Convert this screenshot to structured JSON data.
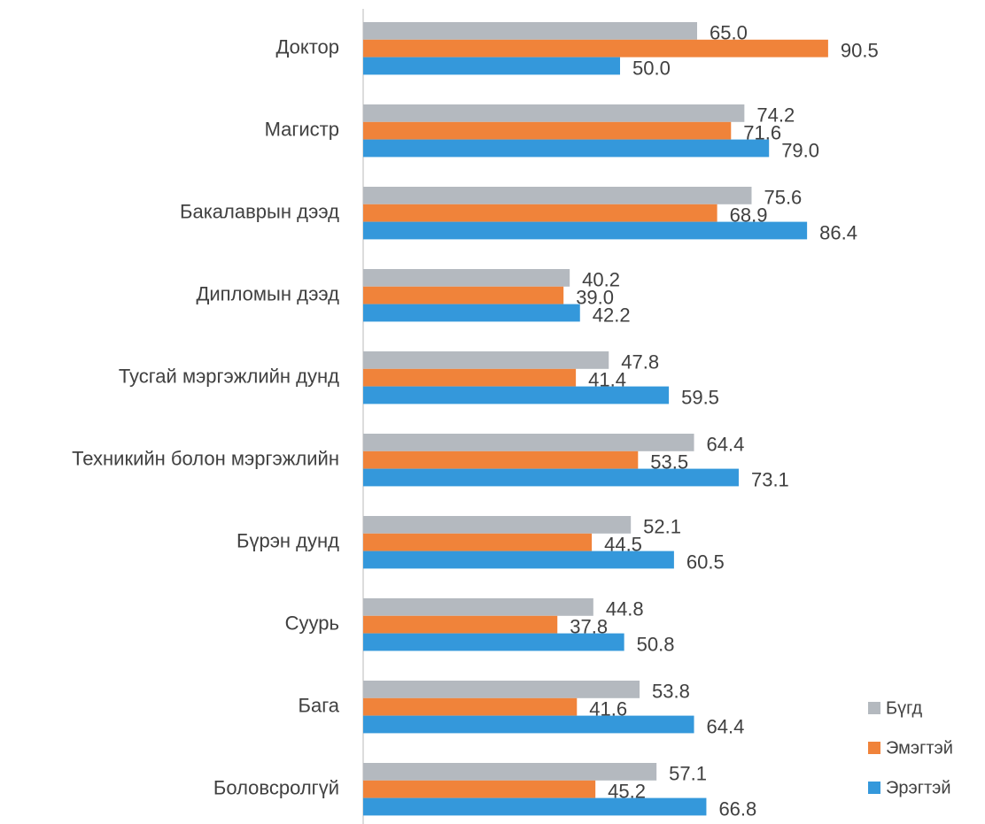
{
  "chart_data": {
    "type": "hbar",
    "categories": [
      "Доктор",
      "Магистр",
      "Бакалаврын дээд",
      "Дипломын дээд",
      "Тусгай мэргэжлийн дунд",
      "Техникийн болон мэргэжлийн",
      "Бүрэн дунд",
      "Суурь",
      "Бага",
      "Боловсролгүй"
    ],
    "series": [
      {
        "name": "Бүгд",
        "color": "#b4b9bf",
        "values": [
          65.0,
          74.2,
          75.6,
          40.2,
          47.8,
          64.4,
          52.1,
          44.8,
          53.8,
          57.1
        ],
        "value_labels": [
          "65.0",
          "74.2",
          "75.6",
          "40.2",
          "47.8",
          "64.4",
          "52.1",
          "44.8",
          "53.8",
          "57.1"
        ]
      },
      {
        "name": "Эмэгтэй",
        "color": "#f0833a",
        "values": [
          90.5,
          71.6,
          68.9,
          39.0,
          41.4,
          53.5,
          44.5,
          37.8,
          41.6,
          45.2
        ],
        "value_labels": [
          "90.5",
          "71.6",
          "68.9",
          "39.0",
          "41.4",
          "53.5",
          "44.5",
          "37.8",
          "41.6",
          "45.2"
        ]
      },
      {
        "name": "Эрэгтэй",
        "color": "#3498db",
        "values": [
          50.0,
          79.0,
          86.4,
          42.2,
          59.5,
          73.1,
          60.5,
          50.8,
          64.4,
          66.8
        ],
        "value_labels": [
          "50.0",
          "79.0",
          "86.4",
          "42.2",
          "59.5",
          "73.1",
          "60.5",
          "50.8",
          "64.4",
          "66.8"
        ]
      }
    ],
    "xlim": [
      0,
      120
    ],
    "legend": "bottom-right"
  }
}
